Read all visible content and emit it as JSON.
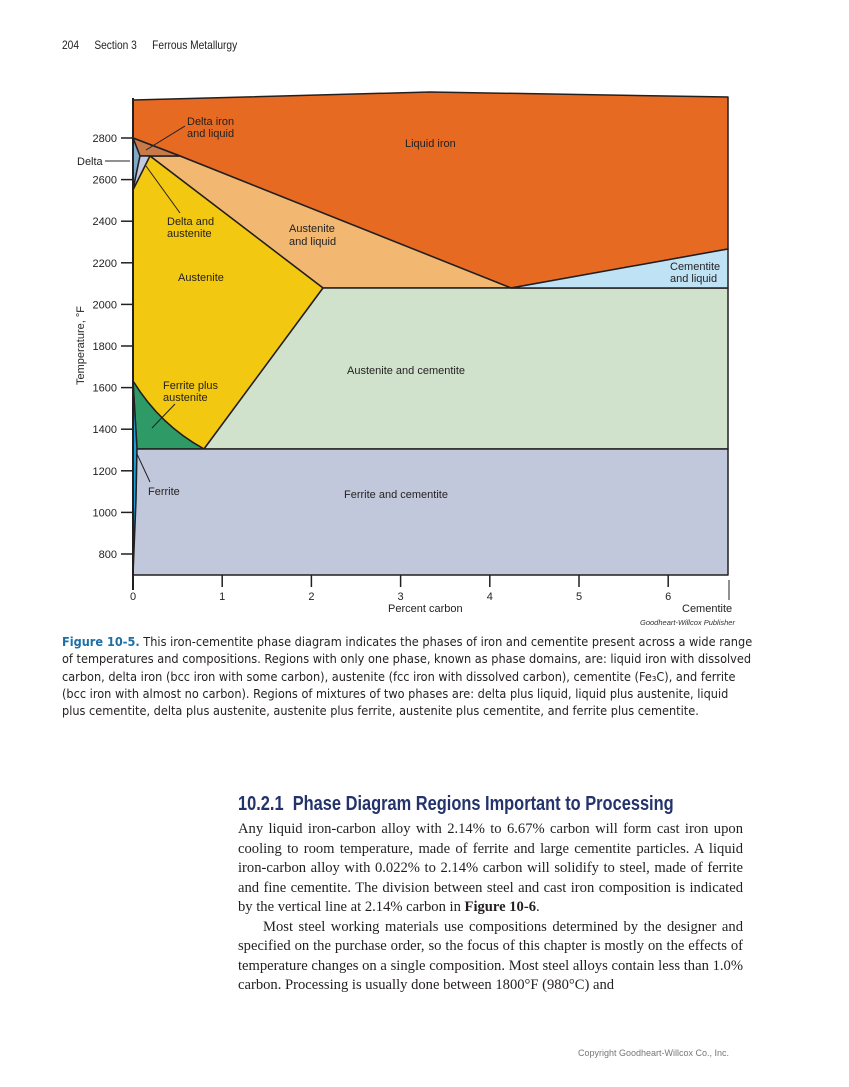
{
  "header": {
    "page_number": "204",
    "section": "Section 3",
    "title": "Ferrous Metallurgy"
  },
  "diagram": {
    "ylabel": "Temperature, °F",
    "xlabel": "Percent carbon",
    "x_end_label": "Cementite",
    "y_ticks": [
      "2800",
      "2600",
      "2400",
      "2200",
      "2000",
      "1800",
      "1600",
      "1400",
      "1200",
      "1000",
      "800"
    ],
    "x_ticks": [
      "0",
      "1",
      "2",
      "3",
      "4",
      "5",
      "6"
    ],
    "regions": {
      "liquid": "Liquid iron",
      "delta_liquid_1": "Delta iron",
      "delta_liquid_2": "and liquid",
      "delta": "Delta",
      "delta_aust_1": "Delta and",
      "delta_aust_2": "austenite",
      "austenite": "Austenite",
      "aust_liq_1": "Austenite",
      "aust_liq_2": "and liquid",
      "cem_liq_1": "Cementite",
      "cem_liq_2": "and liquid",
      "aust_cem": "Austenite and cementite",
      "ferr_aust_1": "Ferrite plus",
      "ferr_aust_2": "austenite",
      "ferrite": "Ferrite",
      "ferr_cem": "Ferrite and cementite"
    },
    "colors": {
      "liquid": "#e66a22",
      "aust_liq": "#f2b872",
      "austenite": "#f2c811",
      "delta": "#7fa9c6",
      "delta_aust": "#c5c9e0",
      "delta_liq": "#c97a4a",
      "ferr_aust": "#2e9a66",
      "ferrite": "#1aa0d6",
      "aust_cem": "#d0e2cc",
      "ferr_cem": "#c2c8db",
      "cem_liq": "#bfe3f5"
    },
    "credit": "Goodheart-Willcox Publisher"
  },
  "caption": {
    "label": "Figure 10-5.",
    "text": " This iron-cementite phase diagram indicates the phases of iron and cementite present across a wide range of temperatures and compositions. Regions with only one phase, known as phase domains, are: liquid iron with dissolved carbon, delta iron (bcc iron with some carbon), austenite (fcc iron with dissolved carbon), cementite (Fe₃C), and ferrite (bcc iron with almost no carbon). Regions of mixtures of two phases are: delta plus liquid, liquid plus austenite, liquid plus cementite, delta plus austenite, austenite plus ferrite, austenite plus cementite, and ferrite plus cementite."
  },
  "section": {
    "number": "10.2.1",
    "title": "Phase Diagram Regions Important to Processing",
    "p1_a": "Any liquid iron-carbon alloy with 2.14% to 6.67% carbon will form cast iron upon cooling to room temperature, made of ferrite and large cementite particles. A liquid iron-carbon alloy with 0.022% to 2.14% carbon will solidify to steel, made of ferrite and fine cementite. The division between steel and cast iron composition is indicated by the vertical line at 2.14% carbon in ",
    "p1_ref": "Figure 10-6",
    "p1_b": ".",
    "p2": "Most steel working materials use compositions determined by the designer and specified on the purchase order, so the focus of this chapter is mostly on the effects of temperature changes on a single composition. Most steel alloys contain less than 1.0% carbon. Processing is usually done between 1800°F (980°C) and"
  },
  "footer": {
    "copyright": "Copyright Goodheart-Willcox Co., Inc."
  }
}
